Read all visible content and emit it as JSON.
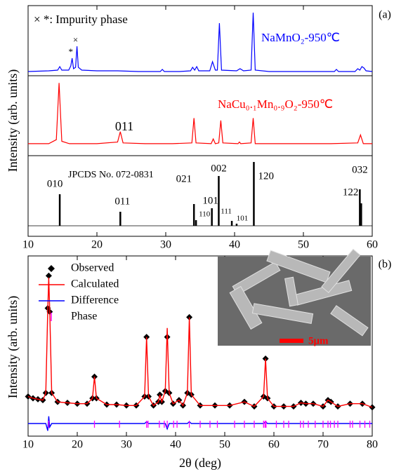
{
  "chart_data": [
    {
      "label": "(a)",
      "ylabel": "Intensity (arb. units)",
      "xlim": [
        10,
        60
      ],
      "xticks": [
        10,
        20,
        30,
        40,
        50,
        60
      ],
      "panels": [
        {
          "type": "line",
          "annotation": "× *: Impurity phase",
          "markers": [
            "*",
            "×"
          ],
          "ylim": [
            0,
            100
          ],
          "series": [
            {
              "name": "NaMnO₂-950℃",
              "color": "#0000ff",
              "x": [
                10,
                13,
                14.3,
                14.6,
                14.9,
                15.9,
                16.2,
                16.4,
                16.6,
                16.9,
                17.1,
                17.3,
                17.8,
                20,
                23,
                26,
                29.2,
                29.5,
                29.8,
                32,
                33.6,
                33.9,
                34.2,
                34.5,
                34.8,
                36.4,
                36.8,
                37.2,
                37.5,
                37.8,
                38.1,
                40.3,
                40.8,
                41.3,
                42.4,
                42.7,
                43.0,
                45,
                50,
                54.5,
                54.8,
                55.1,
                57.5,
                57.9,
                58.2,
                58.5,
                58.8,
                59.1,
                60
              ],
              "values": [
                6,
                7,
                8,
                13,
                8,
                8,
                14,
                25,
                10,
                12,
                42,
                12,
                8,
                7,
                7,
                6,
                6,
                9,
                6,
                6,
                7,
                12,
                8,
                13,
                7,
                7,
                20,
                8,
                8,
                75,
                8,
                7,
                10,
                7,
                8,
                90,
                8,
                6,
                6,
                6,
                9,
                6,
                6,
                10,
                8,
                13,
                11,
                7,
                6
              ]
            }
          ]
        },
        {
          "type": "line",
          "annotation": "011",
          "ylim": [
            0,
            100
          ],
          "series": [
            {
              "name": "NaCu₀.₁Mn₀.₉O₂-950℃",
              "color": "#ff0000",
              "x": [
                10,
                13,
                14.1,
                14.5,
                14.9,
                16,
                20,
                23.0,
                23.4,
                23.8,
                27,
                31,
                33.8,
                34.1,
                34.4,
                36.6,
                36.9,
                37.2,
                37.7,
                38.0,
                38.3,
                40.5,
                40.7,
                40.9,
                42.4,
                42.7,
                43.0,
                48,
                54,
                57.9,
                58.3,
                58.7,
                60
              ],
              "values": [
                15,
                15,
                20,
                91,
                18,
                15,
                15,
                17,
                30,
                16,
                15,
                15,
                16,
                47,
                16,
                15,
                21,
                15,
                16,
                44,
                16,
                15,
                17,
                15,
                16,
                47,
                15,
                15,
                15,
                16,
                26,
                15,
                15
              ]
            }
          ]
        },
        {
          "type": "stem",
          "annotation": "JPCDS No. 072-0831",
          "ylim": [
            -15,
            100
          ],
          "color": "#000000",
          "x": [
            14.6,
            23.4,
            34.1,
            34.4,
            36.7,
            37.7,
            39.6,
            40.3,
            42.8,
            58.2,
            58.4
          ],
          "values": [
            45,
            20,
            31,
            8,
            25,
            71,
            7,
            3,
            91,
            52,
            32
          ],
          "labels": [
            "010",
            "011",
            "021",
            "110",
            "101",
            "002",
            "111",
            "101",
            "120",
            "122",
            "032"
          ]
        }
      ]
    },
    {
      "label": "(b)",
      "type": "line",
      "ylabel": "Intensity (arb. units)",
      "xlabel": "2θ (deg)",
      "xlim": [
        10,
        80
      ],
      "xticks": [
        10,
        20,
        30,
        40,
        50,
        60,
        70,
        80
      ],
      "ylim": [
        0,
        100
      ],
      "inset_label": "5μm",
      "x": [
        10,
        11,
        12,
        13,
        13.6,
        14.0,
        14.2,
        14.4,
        14.8,
        16,
        18,
        20,
        22,
        23.1,
        23.5,
        23.9,
        26,
        28,
        30,
        32,
        33.7,
        34.1,
        34.5,
        35.5,
        36.5,
        36.8,
        37.2,
        37.9,
        38.3,
        38.7,
        39.5,
        40.7,
        41.5,
        42.4,
        42.8,
        43.2,
        45,
        48,
        51,
        54,
        56,
        57.9,
        58.3,
        58.7,
        60,
        62,
        64,
        65.5,
        66.5,
        68,
        70,
        71,
        71.6,
        73,
        75.5,
        78,
        80
      ],
      "series": [
        {
          "name": "Observed",
          "color": "#000000",
          "style": "markers",
          "values": [
            22,
            21,
            20.5,
            20,
            24,
            71,
            89,
            69,
            24,
            19,
            18.5,
            18,
            18,
            21,
            33,
            21,
            17.5,
            17.5,
            17,
            17,
            22,
            55,
            22,
            17,
            19,
            23,
            19,
            25,
            55,
            24,
            18,
            20,
            17,
            24,
            66,
            23,
            17,
            17,
            17,
            19,
            16.5,
            22,
            43,
            21,
            16.5,
            16.5,
            16.5,
            18.5,
            18,
            18,
            16.5,
            20,
            19,
            16.5,
            18,
            18,
            16
          ]
        },
        {
          "name": "Calculated",
          "color": "#ff0000",
          "style": "line",
          "values": [
            22,
            21,
            20.5,
            20,
            24,
            70,
            88,
            70,
            24,
            19,
            18.5,
            18,
            18,
            21,
            33,
            21,
            17.5,
            17.5,
            17,
            17,
            22,
            55,
            22,
            17,
            19,
            23,
            19,
            25,
            60,
            24,
            18,
            20,
            17,
            24,
            66,
            23,
            17,
            17,
            17,
            19,
            16.5,
            22,
            43,
            21,
            16.5,
            16.5,
            16.5,
            18.5,
            18,
            18,
            16.5,
            20,
            19,
            16.5,
            18,
            18,
            16
          ]
        },
        {
          "name": "Difference",
          "color": "#0000ff",
          "style": "line",
          "values": [
            7,
            7,
            7,
            7,
            7,
            3,
            11,
            5,
            7,
            7,
            7,
            7,
            7,
            7,
            7,
            7,
            7,
            7,
            7,
            7,
            7,
            8,
            7,
            7,
            7,
            7,
            7,
            7,
            4,
            7,
            7,
            7,
            7,
            7,
            8,
            7,
            7,
            7,
            7,
            7,
            7,
            7,
            8,
            7,
            7,
            7,
            7,
            7,
            7,
            7,
            7,
            7,
            7,
            7,
            7,
            7,
            7
          ]
        },
        {
          "name": "Phase",
          "color": "#ff00ff",
          "style": "ticks",
          "x": [
            14.2,
            23.5,
            28.6,
            34.1,
            34.4,
            36.7,
            37.7,
            38.3,
            39.6,
            40.3,
            42.8,
            45,
            47,
            48.5,
            52,
            54,
            56,
            57.9,
            58.2,
            58.4,
            60.5,
            62,
            63,
            65.4,
            66,
            67,
            68.4,
            70,
            71,
            71.5,
            72.3,
            73,
            75.5,
            76,
            77.5,
            78.5,
            79.5
          ]
        }
      ]
    }
  ]
}
